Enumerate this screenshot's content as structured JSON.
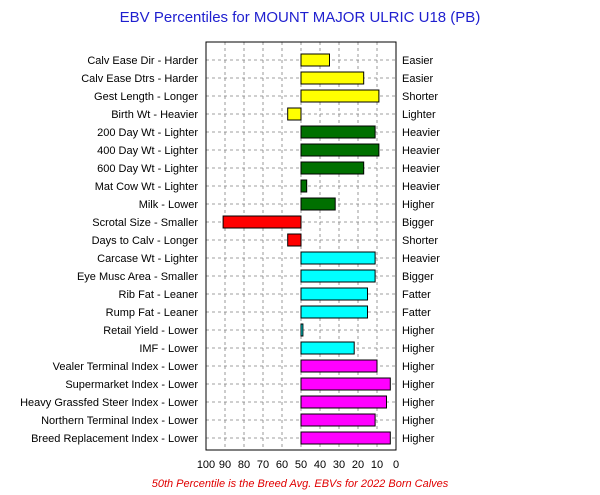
{
  "chart_data": {
    "type": "bar",
    "title": "EBV Percentiles for MOUNT MAJOR ULRIC U18 (PB)",
    "footnote": "50th Percentile is the Breed Avg. EBVs for 2022 Born Calves",
    "xlim": [
      100,
      0
    ],
    "x_reversed": true,
    "baseline": 50,
    "grid": true,
    "x_ticks": [
      "100",
      "90",
      "80",
      "70",
      "60",
      "50",
      "40",
      "30",
      "20",
      "10",
      "0"
    ],
    "colors": {
      "yellow": "#ffff00",
      "green": "#007000",
      "red": "#ff0000",
      "cyan": "#00ffff",
      "magenta": "#ff00ff",
      "grid": "#808080",
      "title": "#1f1fcf",
      "footnote": "#e00000"
    },
    "traits": [
      {
        "label": "Calv Ease Dir - Harder",
        "right": "Easier",
        "value": 35,
        "color": "yellow"
      },
      {
        "label": "Calv Ease Dtrs - Harder",
        "right": "Easier",
        "value": 17,
        "color": "yellow"
      },
      {
        "label": "Gest Length - Longer",
        "right": "Shorter",
        "value": 9,
        "color": "yellow"
      },
      {
        "label": "Birth Wt - Heavier",
        "right": "Lighter",
        "value": 57,
        "color": "yellow"
      },
      {
        "label": "200 Day Wt - Lighter",
        "right": "Heavier",
        "value": 11,
        "color": "green"
      },
      {
        "label": "400 Day Wt - Lighter",
        "right": "Heavier",
        "value": 9,
        "color": "green"
      },
      {
        "label": "600 Day Wt - Lighter",
        "right": "Heavier",
        "value": 17,
        "color": "green"
      },
      {
        "label": "Mat Cow Wt - Lighter",
        "right": "Heavier",
        "value": 47,
        "color": "green"
      },
      {
        "label": "Milk - Lower",
        "right": "Higher",
        "value": 32,
        "color": "green"
      },
      {
        "label": "Scrotal Size - Smaller",
        "right": "Bigger",
        "value": 91,
        "color": "red"
      },
      {
        "label": "Days to Calv - Longer",
        "right": "Shorter",
        "value": 57,
        "color": "red"
      },
      {
        "label": "Carcase Wt - Lighter",
        "right": "Heavier",
        "value": 11,
        "color": "cyan"
      },
      {
        "label": "Eye Musc Area - Smaller",
        "right": "Bigger",
        "value": 11,
        "color": "cyan"
      },
      {
        "label": "Rib Fat - Leaner",
        "right": "Fatter",
        "value": 15,
        "color": "cyan"
      },
      {
        "label": "Rump Fat - Leaner",
        "right": "Fatter",
        "value": 15,
        "color": "cyan"
      },
      {
        "label": "Retail Yield - Lower",
        "right": "Higher",
        "value": 49,
        "color": "cyan"
      },
      {
        "label": "IMF - Lower",
        "right": "Higher",
        "value": 22,
        "color": "cyan"
      },
      {
        "label": "Vealer Terminal Index - Lower",
        "right": "Higher",
        "value": 10,
        "color": "magenta"
      },
      {
        "label": "Supermarket Index - Lower",
        "right": "Higher",
        "value": 3,
        "color": "magenta"
      },
      {
        "label": "Heavy Grassfed Steer Index - Lower",
        "right": "Higher",
        "value": 5,
        "color": "magenta"
      },
      {
        "label": "Northern Terminal Index - Lower",
        "right": "Higher",
        "value": 11,
        "color": "magenta"
      },
      {
        "label": "Breed Replacement Index - Lower",
        "right": "Higher",
        "value": 3,
        "color": "magenta"
      }
    ]
  }
}
